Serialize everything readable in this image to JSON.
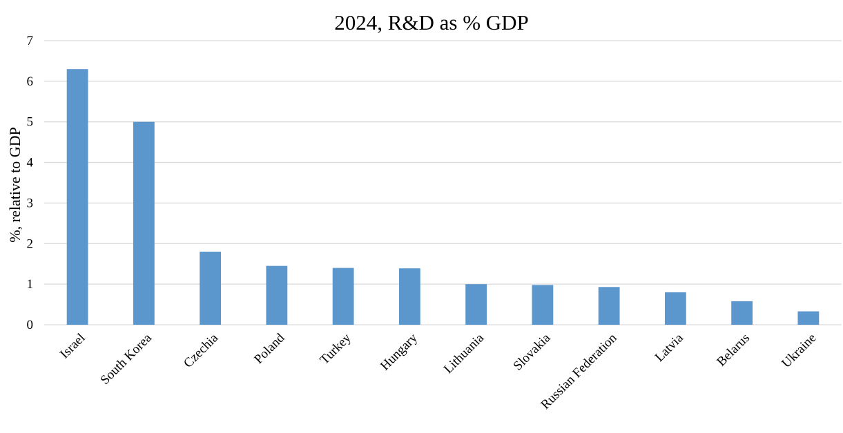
{
  "chart_data": {
    "type": "bar",
    "title": "2024, R&D as % GDP",
    "xlabel": "",
    "ylabel": "%, relative to GDP",
    "ylim": [
      0,
      7
    ],
    "yticks": [
      0,
      1,
      2,
      3,
      4,
      5,
      6,
      7
    ],
    "grid": true,
    "legend": "none",
    "bar_color": "#5b96cc",
    "categories": [
      "Israel",
      "South Korea",
      "Czechia",
      "Poland",
      "Turkey",
      "Hungary",
      "Lithuania",
      "Slovakia",
      "Russian Federation",
      "Latvia",
      "Belarus",
      "Ukraine"
    ],
    "values": [
      6.3,
      5.0,
      1.8,
      1.45,
      1.4,
      1.39,
      1.0,
      0.98,
      0.93,
      0.8,
      0.58,
      0.33
    ]
  }
}
